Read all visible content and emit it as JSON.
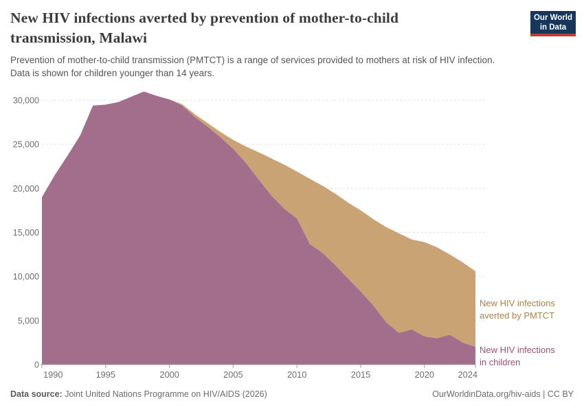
{
  "header": {
    "title": "New HIV infections averted by prevention of mother-to-child\ntransmission, Malawi",
    "subtitle": "Prevention of mother-to-child transmission (PMTCT) is a range of services provided to mothers at risk of HIV infection.\nData is shown for children younger than 14 years.",
    "logo": "Our World\nin Data"
  },
  "footer": {
    "source_label": "Data source:",
    "source_text": " Joint United Nations Programme on HIV/AIDS (2026)",
    "attribution": "OurWorldinData.org/hiv-aids | CC BY"
  },
  "chart_data": {
    "type": "area",
    "stacked": true,
    "title": "New HIV infections averted by prevention of mother-to-child transmission, Malawi",
    "x_range": [
      1990,
      2024
    ],
    "ylim": [
      0,
      31000
    ],
    "y_ticks": [
      0,
      5000,
      10000,
      15000,
      20000,
      25000,
      30000
    ],
    "x_ticks": [
      1990,
      1995,
      2000,
      2005,
      2010,
      2015,
      2020,
      2024
    ],
    "grid": "dashed-horizontal",
    "legend_position": "right-annotations",
    "years": [
      1990,
      1991,
      1992,
      1993,
      1994,
      1995,
      1996,
      1997,
      1998,
      1999,
      2000,
      2001,
      2002,
      2003,
      2004,
      2005,
      2006,
      2007,
      2008,
      2009,
      2010,
      2011,
      2012,
      2013,
      2014,
      2015,
      2016,
      2017,
      2018,
      2019,
      2020,
      2021,
      2022,
      2023,
      2024
    ],
    "series": [
      {
        "name": "New HIV infections in children",
        "label": "New HIV infections\nin children",
        "color": "#a36e8c",
        "label_color": "#9e4d78",
        "values": [
          19000,
          21500,
          23700,
          26000,
          29400,
          29500,
          29800,
          30400,
          31000,
          30500,
          30100,
          29400,
          28100,
          27000,
          25800,
          24500,
          22900,
          21000,
          19200,
          17700,
          16600,
          13700,
          12700,
          11300,
          9800,
          8300,
          6700,
          4800,
          3600,
          4000,
          3200,
          3000,
          3400,
          2500,
          2000
        ]
      },
      {
        "name": "New HIV infections averted by PMTCT",
        "label": "New HIV infections\naverted by PMTCT",
        "color": "#c9a373",
        "label_color": "#ad8145",
        "values": [
          0,
          0,
          0,
          0,
          0,
          0,
          0,
          0,
          0,
          0,
          0,
          150,
          300,
          400,
          600,
          1000,
          1850,
          3100,
          4200,
          5000,
          5300,
          7400,
          7600,
          8100,
          8600,
          9200,
          9800,
          10800,
          11300,
          10200,
          10700,
          10300,
          9100,
          9100,
          8600
        ]
      }
    ],
    "axis_colors": {
      "tick_label": "#6e6e6e",
      "gridline": "#dcdcdc",
      "axis_line": "#a0a0a0"
    }
  }
}
